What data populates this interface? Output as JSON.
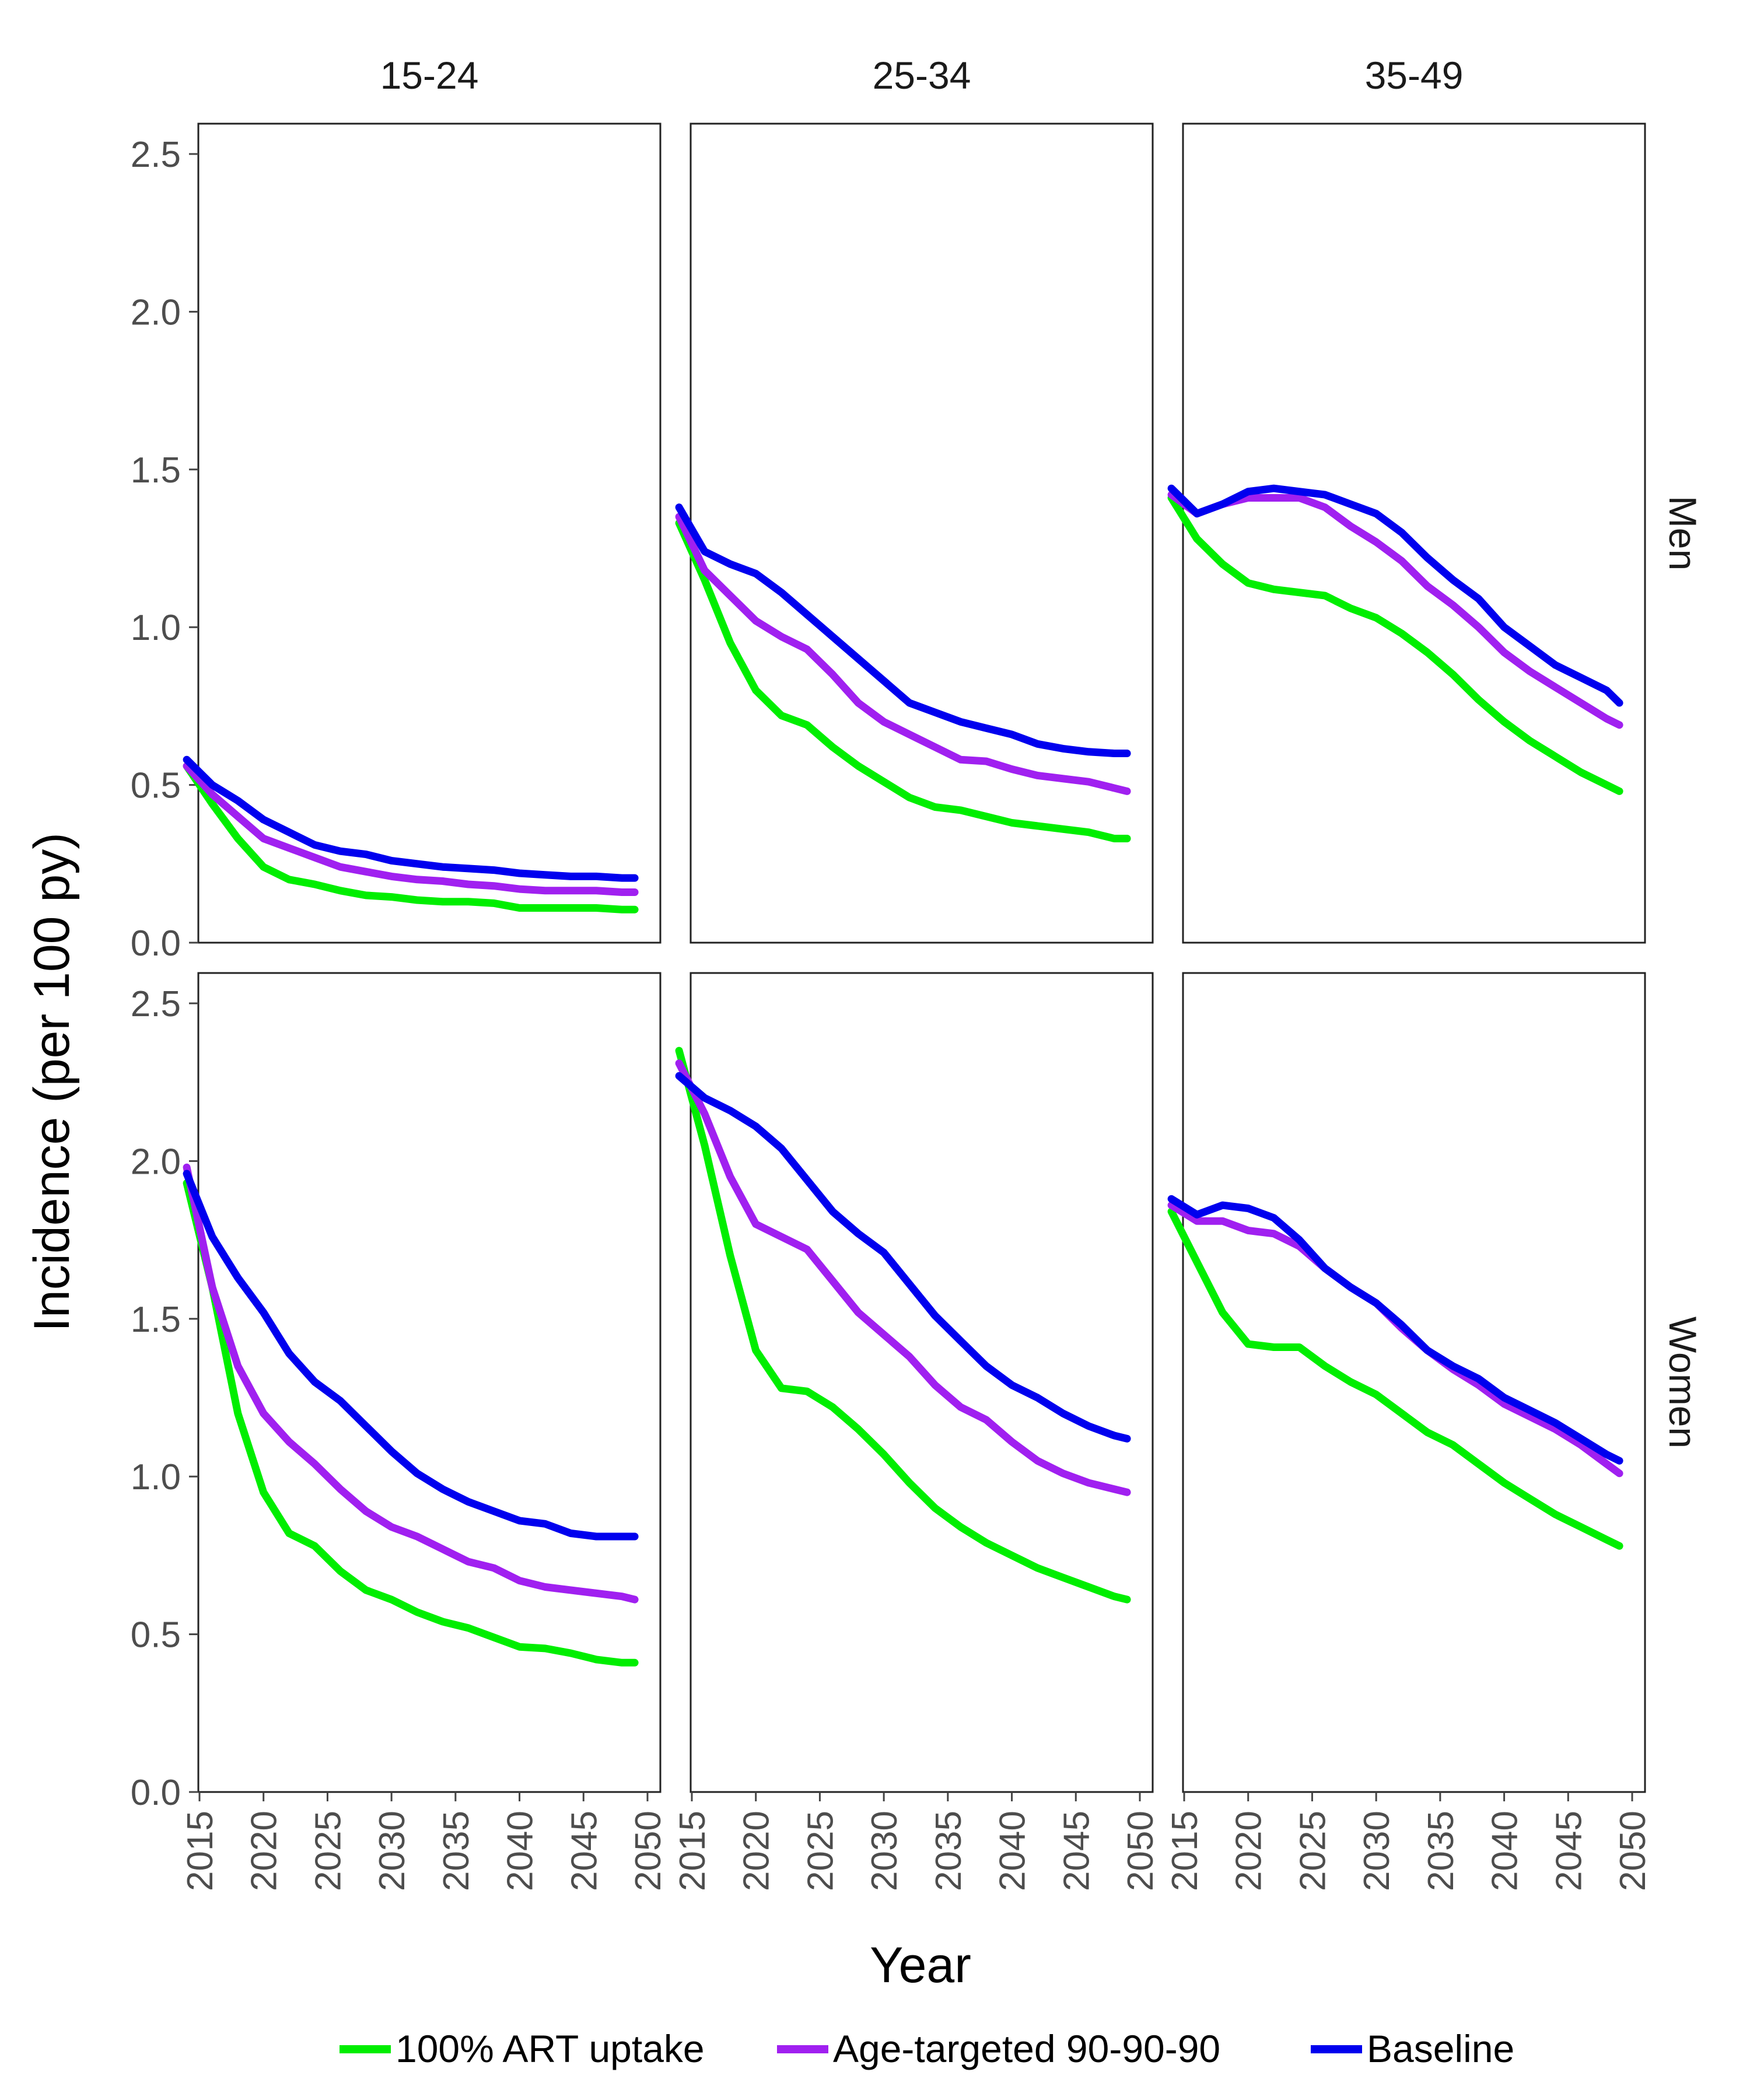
{
  "chart_data": {
    "type": "line",
    "layout": "facet-grid",
    "xlabel": "Year",
    "ylabel": "Incidence (per 100 py)",
    "xlim": [
      2015,
      2050
    ],
    "ylim": [
      0,
      2.6
    ],
    "x_ticks": [
      2015,
      2020,
      2025,
      2030,
      2035,
      2040,
      2045,
      2050
    ],
    "y_ticks": [
      0.0,
      0.5,
      1.0,
      1.5,
      2.0,
      2.5
    ],
    "y_tick_labels": [
      "0.0",
      "0.5",
      "1.0",
      "1.5",
      "2.0",
      "2.5"
    ],
    "columns": [
      "15-24",
      "25-34",
      "35-49"
    ],
    "rows": [
      "Men",
      "Women"
    ],
    "legend_position": "bottom",
    "series_defs": [
      {
        "name": "100% ART uptake",
        "color": "#00ee00"
      },
      {
        "name": "Age-targeted 90-90-90",
        "color": "#a020f0"
      },
      {
        "name": "Baseline",
        "color": "#0000ee"
      }
    ],
    "x": [
      2014,
      2016,
      2018,
      2020,
      2022,
      2024,
      2026,
      2028,
      2030,
      2032,
      2034,
      2036,
      2038,
      2040,
      2042,
      2044,
      2046,
      2048,
      2049
    ],
    "panels": [
      {
        "row": "Men",
        "col": "15-24",
        "series": [
          {
            "name": "100% ART uptake",
            "values": [
              0.56,
              0.44,
              0.33,
              0.24,
              0.2,
              0.185,
              0.165,
              0.15,
              0.145,
              0.135,
              0.13,
              0.13,
              0.125,
              0.11,
              0.11,
              0.11,
              0.11,
              0.105,
              0.105
            ]
          },
          {
            "name": "Age-targeted 90-90-90",
            "values": [
              0.56,
              0.47,
              0.4,
              0.33,
              0.3,
              0.27,
              0.24,
              0.225,
              0.21,
              0.2,
              0.195,
              0.185,
              0.18,
              0.17,
              0.165,
              0.165,
              0.165,
              0.16,
              0.16
            ]
          },
          {
            "name": "Baseline",
            "values": [
              0.58,
              0.5,
              0.45,
              0.39,
              0.35,
              0.31,
              0.29,
              0.28,
              0.26,
              0.25,
              0.24,
              0.235,
              0.23,
              0.22,
              0.215,
              0.21,
              0.21,
              0.205,
              0.205
            ]
          }
        ]
      },
      {
        "row": "Men",
        "col": "25-34",
        "series": [
          {
            "name": "100% ART uptake",
            "values": [
              1.33,
              1.15,
              0.95,
              0.8,
              0.72,
              0.69,
              0.62,
              0.56,
              0.51,
              0.46,
              0.43,
              0.42,
              0.4,
              0.38,
              0.37,
              0.36,
              0.35,
              0.33,
              0.33
            ]
          },
          {
            "name": "Age-targeted 90-90-90",
            "values": [
              1.35,
              1.18,
              1.1,
              1.02,
              0.97,
              0.93,
              0.85,
              0.76,
              0.7,
              0.66,
              0.62,
              0.58,
              0.575,
              0.55,
              0.53,
              0.52,
              0.51,
              0.49,
              0.48
            ]
          },
          {
            "name": "Baseline",
            "values": [
              1.38,
              1.24,
              1.2,
              1.17,
              1.11,
              1.04,
              0.97,
              0.9,
              0.83,
              0.76,
              0.73,
              0.7,
              0.68,
              0.66,
              0.63,
              0.615,
              0.605,
              0.6,
              0.6
            ]
          }
        ]
      },
      {
        "row": "Men",
        "col": "35-49",
        "series": [
          {
            "name": "100% ART uptake",
            "values": [
              1.41,
              1.28,
              1.2,
              1.14,
              1.12,
              1.11,
              1.1,
              1.06,
              1.03,
              0.98,
              0.92,
              0.85,
              0.77,
              0.7,
              0.64,
              0.59,
              0.54,
              0.5,
              0.48
            ]
          },
          {
            "name": "Age-targeted 90-90-90",
            "values": [
              1.42,
              1.36,
              1.39,
              1.41,
              1.41,
              1.41,
              1.38,
              1.32,
              1.27,
              1.21,
              1.13,
              1.07,
              1.0,
              0.92,
              0.86,
              0.81,
              0.76,
              0.71,
              0.69
            ]
          },
          {
            "name": "Baseline",
            "values": [
              1.44,
              1.36,
              1.39,
              1.43,
              1.44,
              1.43,
              1.42,
              1.39,
              1.36,
              1.3,
              1.22,
              1.15,
              1.09,
              1.0,
              0.94,
              0.88,
              0.84,
              0.8,
              0.76
            ]
          }
        ]
      },
      {
        "row": "Women",
        "col": "15-24",
        "series": [
          {
            "name": "100% ART uptake",
            "values": [
              1.93,
              1.6,
              1.2,
              0.95,
              0.82,
              0.78,
              0.7,
              0.64,
              0.61,
              0.57,
              0.54,
              0.52,
              0.49,
              0.46,
              0.455,
              0.44,
              0.42,
              0.41,
              0.41
            ]
          },
          {
            "name": "Age-targeted 90-90-90",
            "values": [
              1.98,
              1.6,
              1.35,
              1.2,
              1.11,
              1.04,
              0.96,
              0.89,
              0.84,
              0.81,
              0.77,
              0.73,
              0.71,
              0.67,
              0.65,
              0.64,
              0.63,
              0.62,
              0.61
            ]
          },
          {
            "name": "Baseline",
            "values": [
              1.96,
              1.76,
              1.63,
              1.52,
              1.39,
              1.3,
              1.24,
              1.16,
              1.08,
              1.01,
              0.96,
              0.92,
              0.89,
              0.86,
              0.85,
              0.82,
              0.81,
              0.81,
              0.81
            ]
          }
        ]
      },
      {
        "row": "Women",
        "col": "25-34",
        "series": [
          {
            "name": "100% ART uptake",
            "values": [
              2.35,
              2.05,
              1.7,
              1.4,
              1.28,
              1.27,
              1.22,
              1.15,
              1.07,
              0.98,
              0.9,
              0.84,
              0.79,
              0.75,
              0.71,
              0.68,
              0.65,
              0.62,
              0.61
            ]
          },
          {
            "name": "Age-targeted 90-90-90",
            "values": [
              2.31,
              2.15,
              1.95,
              1.8,
              1.76,
              1.72,
              1.62,
              1.52,
              1.45,
              1.38,
              1.29,
              1.22,
              1.18,
              1.11,
              1.05,
              1.01,
              0.98,
              0.96,
              0.95
            ]
          },
          {
            "name": "Baseline",
            "values": [
              2.27,
              2.2,
              2.16,
              2.11,
              2.04,
              1.94,
              1.84,
              1.77,
              1.71,
              1.61,
              1.51,
              1.43,
              1.35,
              1.29,
              1.25,
              1.2,
              1.16,
              1.13,
              1.12
            ]
          }
        ]
      },
      {
        "row": "Women",
        "col": "35-49",
        "series": [
          {
            "name": "100% ART uptake",
            "values": [
              1.84,
              1.68,
              1.52,
              1.42,
              1.41,
              1.41,
              1.35,
              1.3,
              1.26,
              1.2,
              1.14,
              1.1,
              1.04,
              0.98,
              0.93,
              0.88,
              0.84,
              0.8,
              0.78
            ]
          },
          {
            "name": "Age-targeted 90-90-90",
            "values": [
              1.86,
              1.81,
              1.81,
              1.78,
              1.77,
              1.73,
              1.66,
              1.6,
              1.55,
              1.47,
              1.4,
              1.34,
              1.29,
              1.23,
              1.19,
              1.15,
              1.1,
              1.04,
              1.01
            ]
          },
          {
            "name": "Baseline",
            "values": [
              1.88,
              1.83,
              1.86,
              1.85,
              1.82,
              1.75,
              1.66,
              1.6,
              1.55,
              1.48,
              1.4,
              1.35,
              1.31,
              1.25,
              1.21,
              1.17,
              1.12,
              1.07,
              1.05
            ]
          }
        ]
      }
    ]
  }
}
